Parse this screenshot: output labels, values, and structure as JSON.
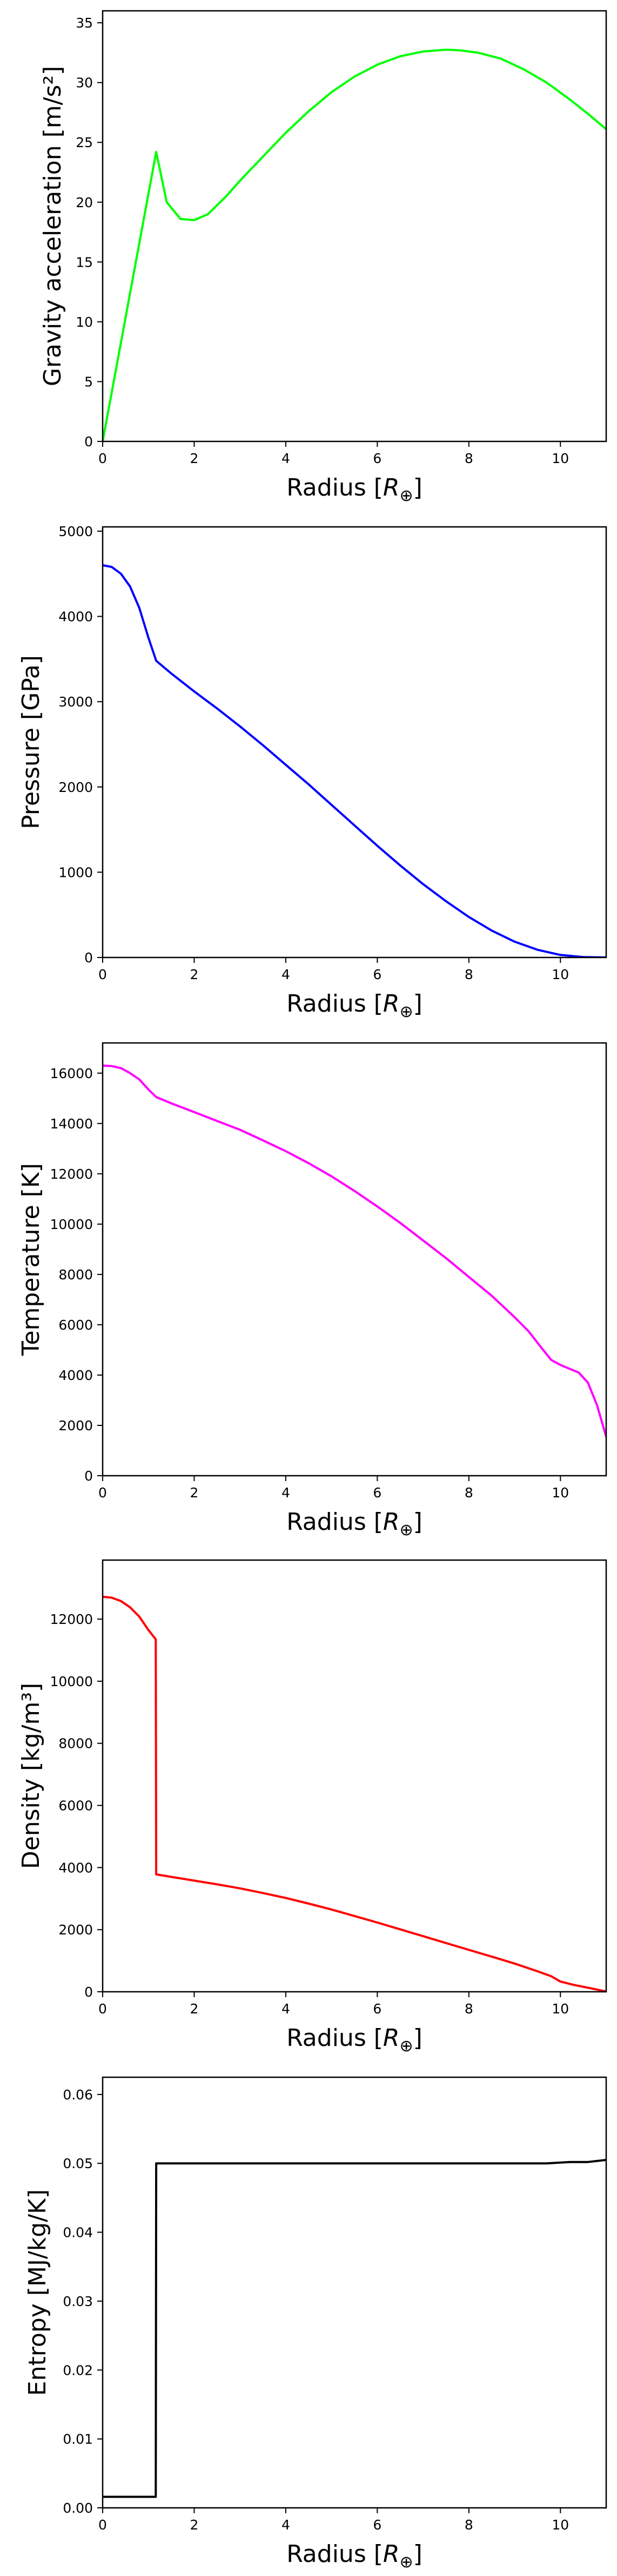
{
  "chart_data": [
    {
      "type": "line",
      "xlabel": "Radius [R_⊕]",
      "xlabel_main": "Radius [",
      "xlabel_sym": "R",
      "xlabel_sub": "⊕",
      "xlabel_end": "]",
      "ylabel": "Gravity acceleration [m/s²]",
      "xlim": [
        0,
        11
      ],
      "ylim": [
        0,
        36
      ],
      "xticks": [
        0,
        2,
        4,
        6,
        8,
        10
      ],
      "yticks": [
        0,
        5,
        10,
        15,
        20,
        25,
        30,
        35
      ],
      "ytick_labels": [
        "0",
        "5",
        "10",
        "15",
        "20",
        "25",
        "30",
        "35"
      ],
      "grid": false,
      "series": [
        {
          "color": "#00ff00",
          "x": [
            0,
            1.17,
            1.4,
            1.7,
            2.0,
            2.3,
            2.7,
            3.0,
            3.5,
            4.0,
            4.5,
            5.0,
            5.5,
            6.0,
            6.5,
            7.0,
            7.5,
            7.8,
            8.2,
            8.7,
            9.2,
            9.7,
            10.2,
            10.6,
            11.0
          ],
          "y": [
            0,
            24.2,
            20.0,
            18.6,
            18.5,
            19.0,
            20.5,
            21.8,
            23.8,
            25.8,
            27.6,
            29.2,
            30.5,
            31.5,
            32.2,
            32.6,
            32.75,
            32.7,
            32.5,
            32.0,
            31.1,
            30.0,
            28.6,
            27.4,
            26.1
          ]
        }
      ]
    },
    {
      "type": "line",
      "xlabel": "Radius [R_⊕]",
      "xlabel_main": "Radius [",
      "xlabel_sym": "R",
      "xlabel_sub": "⊕",
      "xlabel_end": "]",
      "ylabel": "Pressure [GPa]",
      "xlim": [
        0,
        11
      ],
      "ylim": [
        0,
        5050
      ],
      "xticks": [
        0,
        2,
        4,
        6,
        8,
        10
      ],
      "yticks": [
        0,
        1000,
        2000,
        3000,
        4000,
        5000
      ],
      "ytick_labels": [
        "0",
        "1000",
        "2000",
        "3000",
        "4000",
        "5000"
      ],
      "grid": false,
      "series": [
        {
          "color": "#0000ff",
          "x": [
            0,
            0.2,
            0.4,
            0.6,
            0.8,
            1.0,
            1.17,
            1.5,
            2.0,
            2.5,
            3.0,
            3.5,
            4.0,
            4.5,
            5.0,
            5.5,
            6.0,
            6.5,
            7.0,
            7.5,
            8.0,
            8.5,
            9.0,
            9.5,
            10.0,
            10.5,
            11.0
          ],
          "y": [
            4600,
            4580,
            4500,
            4350,
            4100,
            3750,
            3480,
            3330,
            3120,
            2920,
            2710,
            2490,
            2260,
            2030,
            1790,
            1550,
            1310,
            1080,
            860,
            660,
            475,
            315,
            185,
            90,
            30,
            5,
            0
          ]
        }
      ]
    },
    {
      "type": "line",
      "xlabel": "Radius [R_⊕]",
      "xlabel_main": "Radius [",
      "xlabel_sym": "R",
      "xlabel_sub": "⊕",
      "xlabel_end": "]",
      "ylabel": "Temperature [K]",
      "xlim": [
        0,
        11
      ],
      "ylim": [
        0,
        17200
      ],
      "xticks": [
        0,
        2,
        4,
        6,
        8,
        10
      ],
      "yticks": [
        0,
        2000,
        4000,
        6000,
        8000,
        10000,
        12000,
        14000,
        16000
      ],
      "ytick_labels": [
        "0",
        "2000",
        "4000",
        "6000",
        "8000",
        "10000",
        "12000",
        "14000",
        "16000"
      ],
      "grid": false,
      "series": [
        {
          "color": "#ff00ff",
          "x": [
            0,
            0.2,
            0.4,
            0.6,
            0.8,
            1.0,
            1.17,
            1.5,
            2.0,
            2.5,
            3.0,
            3.5,
            4.0,
            4.5,
            5.0,
            5.5,
            6.0,
            6.5,
            7.0,
            7.5,
            8.0,
            8.5,
            9.0,
            9.3,
            9.6,
            9.8,
            10.0,
            10.2,
            10.4,
            10.6,
            10.8,
            11.0
          ],
          "y": [
            16300,
            16280,
            16200,
            16000,
            15750,
            15350,
            15050,
            14800,
            14450,
            14100,
            13750,
            13330,
            12900,
            12420,
            11900,
            11320,
            10700,
            10050,
            9350,
            8650,
            7900,
            7150,
            6300,
            5750,
            5050,
            4600,
            4400,
            4250,
            4100,
            3700,
            2800,
            1550
          ]
        }
      ]
    },
    {
      "type": "line",
      "xlabel": "Radius [R_⊕]",
      "xlabel_main": "Radius [",
      "xlabel_sym": "R",
      "xlabel_sub": "⊕",
      "xlabel_end": "]",
      "ylabel": "Density [kg/m³]",
      "xlim": [
        0,
        11
      ],
      "ylim": [
        0,
        13900
      ],
      "xticks": [
        0,
        2,
        4,
        6,
        8,
        10
      ],
      "yticks": [
        0,
        2000,
        4000,
        6000,
        8000,
        10000,
        12000
      ],
      "ytick_labels": [
        "0",
        "2000",
        "4000",
        "6000",
        "8000",
        "10000",
        "12000"
      ],
      "grid": false,
      "series": [
        {
          "color": "#ff0000",
          "x": [
            0,
            0.2,
            0.4,
            0.6,
            0.8,
            1.0,
            1.16,
            1.17,
            1.5,
            2.0,
            2.5,
            3.0,
            3.5,
            4.0,
            4.5,
            5.0,
            5.5,
            6.0,
            6.5,
            7.0,
            7.5,
            8.0,
            8.5,
            9.0,
            9.5,
            9.8,
            10.0,
            10.3,
            10.6,
            10.9,
            11.0
          ],
          "y": [
            12720,
            12690,
            12580,
            12380,
            12080,
            11650,
            11350,
            3780,
            3700,
            3580,
            3460,
            3330,
            3180,
            3020,
            2840,
            2650,
            2440,
            2230,
            2010,
            1790,
            1570,
            1350,
            1130,
            910,
            660,
            500,
            330,
            220,
            130,
            40,
            10
          ]
        }
      ]
    },
    {
      "type": "line",
      "xlabel": "Radius [R_⊕]",
      "xlabel_main": "Radius [",
      "xlabel_sym": "R",
      "xlabel_sub": "⊕",
      "xlabel_end": "]",
      "ylabel": "Entropy [MJ/kg/K]",
      "xlim": [
        0,
        11
      ],
      "ylim": [
        0,
        0.0625
      ],
      "xticks": [
        0,
        2,
        4,
        6,
        8,
        10
      ],
      "yticks": [
        0,
        0.01,
        0.02,
        0.03,
        0.04,
        0.05,
        0.06
      ],
      "ytick_labels": [
        "0.00",
        "0.01",
        "0.02",
        "0.03",
        "0.04",
        "0.05",
        "0.06"
      ],
      "grid": false,
      "series": [
        {
          "color": "#000000",
          "x": [
            0,
            1.16,
            1.17,
            2.0,
            4.0,
            6.0,
            8.0,
            9.7,
            10.2,
            10.6,
            11.0
          ],
          "y": [
            0.0016,
            0.0016,
            0.05,
            0.05,
            0.05,
            0.05,
            0.05,
            0.05,
            0.0502,
            0.0502,
            0.0505
          ]
        }
      ]
    }
  ]
}
